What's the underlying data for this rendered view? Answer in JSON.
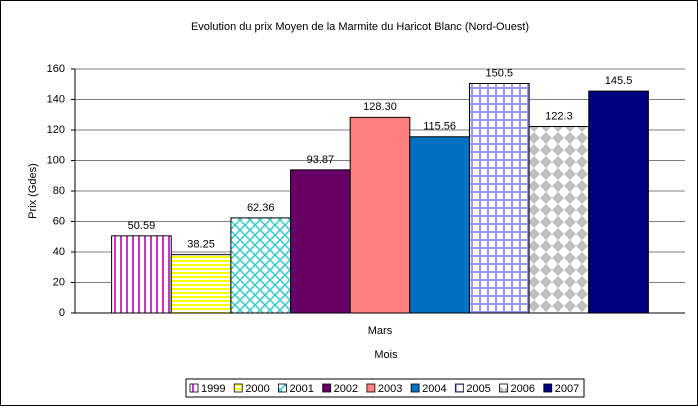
{
  "chart_data": {
    "type": "bar",
    "title": "Evolution du prix Moyen de la Marmite du Haricot Blanc  (Nord-Ouest)",
    "x_label": "Mois",
    "y_label": "Prix (Gdes)",
    "categories": [
      "Mars"
    ],
    "series": [
      {
        "name": "1999",
        "color": "#cc33cc",
        "pattern": "vertical",
        "values": [
          50.59
        ]
      },
      {
        "name": "2000",
        "color": "#ffff00",
        "pattern": "horizontal",
        "values": [
          38.25
        ]
      },
      {
        "name": "2001",
        "color": "#33cccc",
        "pattern": "crosshatch",
        "values": [
          62.36
        ]
      },
      {
        "name": "2002",
        "color": "#660066",
        "pattern": "solid",
        "values": [
          93.87
        ]
      },
      {
        "name": "2003",
        "color": "#ff8080",
        "pattern": "solid",
        "values": [
          128.3
        ],
        "value_labels": [
          "128.30"
        ]
      },
      {
        "name": "2004",
        "color": "#0070c0",
        "pattern": "solid",
        "values": [
          115.56
        ]
      },
      {
        "name": "2005",
        "color": "#9999ff",
        "pattern": "grid",
        "values": [
          150.5
        ]
      },
      {
        "name": "2006",
        "color": "#c0c0c0",
        "pattern": "diamond",
        "values": [
          122.3
        ]
      },
      {
        "name": "2007",
        "color": "#000080",
        "pattern": "solid",
        "values": [
          145.5
        ]
      }
    ],
    "ylim": [
      0,
      160
    ],
    "yticks": [
      0,
      20,
      40,
      60,
      80,
      100,
      120,
      140,
      160
    ],
    "grid": true,
    "legend": "bottom"
  }
}
